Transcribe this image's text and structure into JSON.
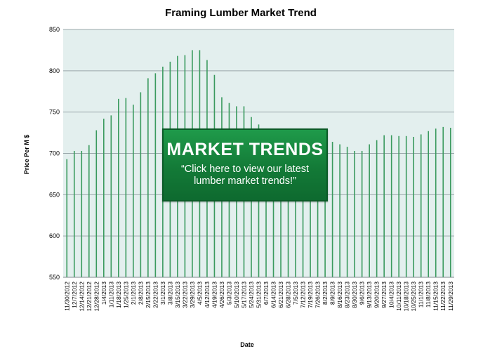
{
  "chart_data": {
    "type": "bar",
    "title": "Framing Lumber Market Trend",
    "xlabel": "Date",
    "ylabel": "Price Per M $",
    "ylim": [
      550,
      850
    ],
    "yticks": [
      550,
      600,
      650,
      700,
      750,
      800,
      850
    ],
    "grid": true,
    "categories": [
      "11/30/2012",
      "12/7/2012",
      "12/14/2012",
      "12/21/2012",
      "12/28/2012",
      "1/4/2013",
      "1/11/2013",
      "1/18/2013",
      "1/25/2013",
      "2/1/2013",
      "2/8/2013",
      "2/15/2013",
      "2/22/2013",
      "3/1/2013",
      "3/8/2013",
      "3/15/2013",
      "3/22/2013",
      "3/29/2013",
      "4/5/2013",
      "4/12/2013",
      "4/19/2013",
      "4/26/2013",
      "5/3/2013",
      "5/10/2013",
      "5/17/2013",
      "5/24/2013",
      "5/31/2013",
      "6/7/2013",
      "6/14/2013",
      "6/21/2013",
      "6/28/2013",
      "7/5/2013",
      "7/12/2013",
      "7/19/2013",
      "7/26/2013",
      "8/2/2013",
      "8/9/2013",
      "8/16/2013",
      "8/23/2013",
      "8/30/2013",
      "9/6/2013",
      "9/13/2013",
      "9/20/2013",
      "9/27/2013",
      "10/4/2013",
      "10/11/2013",
      "10/18/2013",
      "10/25/2013",
      "11/1/2013",
      "11/8/2013",
      "11/15/2013",
      "11/22/2013",
      "11/29/2013"
    ],
    "values": [
      693,
      703,
      703,
      710,
      728,
      742,
      746,
      766,
      767,
      759,
      774,
      791,
      797,
      805,
      811,
      818,
      819,
      825,
      825,
      813,
      795,
      768,
      761,
      757,
      757,
      744,
      735,
      728,
      725,
      722,
      722,
      720,
      718,
      716,
      714,
      716,
      714,
      711,
      708,
      703,
      703,
      711,
      716,
      722,
      722,
      721,
      721,
      720,
      723,
      727,
      730,
      732,
      731
    ]
  },
  "banner": {
    "headline": "MARKET TRENDS",
    "subtext": "“Click here to view our latest lumber market trends!”"
  },
  "colors": {
    "plot_background": "#e3efee",
    "bar": "#3a9a5e",
    "grid": "#9aa7aa",
    "banner": "#137a37"
  }
}
